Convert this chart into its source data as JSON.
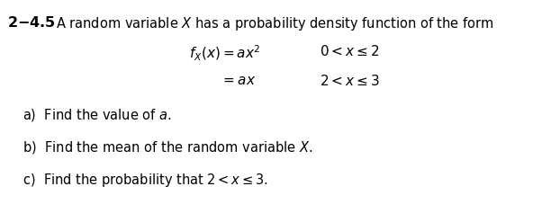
{
  "bg_color": "#ffffff",
  "fig_width": 6.02,
  "fig_height": 2.37,
  "dpi": 100,
  "font_size_title": 10.5,
  "font_size_eq": 11,
  "font_size_q": 10.5
}
